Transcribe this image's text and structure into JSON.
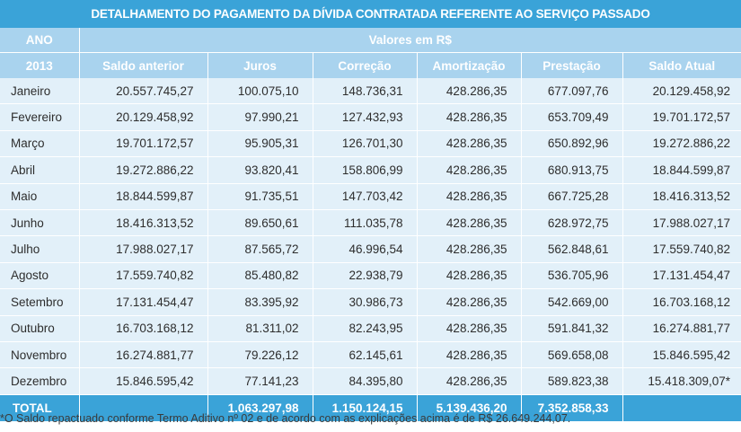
{
  "title": "DETALHAMENTO DO PAGAMENTO DA DÍVIDA CONTRATADA REFERENTE AO SERVIÇO PASSADO",
  "header": {
    "ano_label": "ANO",
    "valores_label": "Valores em R$",
    "year": "2013",
    "columns": [
      "Saldo anterior",
      "Juros",
      "Correção",
      "Amortização",
      "Prestação",
      "Saldo Atual"
    ]
  },
  "rows": [
    {
      "month": "Janeiro",
      "values": [
        "20.557.745,27",
        "100.075,10",
        "148.736,31",
        "428.286,35",
        "677.097,76",
        "20.129.458,92"
      ]
    },
    {
      "month": "Fevereiro",
      "values": [
        "20.129.458,92",
        "97.990,21",
        "127.432,93",
        "428.286,35",
        "653.709,49",
        "19.701.172,57"
      ]
    },
    {
      "month": "Março",
      "values": [
        "19.701.172,57",
        "95.905,31",
        "126.701,30",
        "428.286,35",
        "650.892,96",
        "19.272.886,22"
      ]
    },
    {
      "month": "Abril",
      "values": [
        "19.272.886,22",
        "93.820,41",
        "158.806,99",
        "428.286,35",
        "680.913,75",
        "18.844.599,87"
      ]
    },
    {
      "month": "Maio",
      "values": [
        "18.844.599,87",
        "91.735,51",
        "147.703,42",
        "428.286,35",
        "667.725,28",
        "18.416.313,52"
      ]
    },
    {
      "month": "Junho",
      "values": [
        "18.416.313,52",
        "89.650,61",
        "111.035,78",
        "428.286,35",
        "628.972,75",
        "17.988.027,17"
      ]
    },
    {
      "month": "Julho",
      "values": [
        "17.988.027,17",
        "87.565,72",
        "46.996,54",
        "428.286,35",
        "562.848,61",
        "17.559.740,82"
      ]
    },
    {
      "month": "Agosto",
      "values": [
        "17.559.740,82",
        "85.480,82",
        "22.938,79",
        "428.286,35",
        "536.705,96",
        "17.131.454,47"
      ]
    },
    {
      "month": "Setembro",
      "values": [
        "17.131.454,47",
        "83.395,92",
        "30.986,73",
        "428.286,35",
        "542.669,00",
        "16.703.168,12"
      ]
    },
    {
      "month": "Outubro",
      "values": [
        "16.703.168,12",
        "81.311,02",
        "82.243,95",
        "428.286,35",
        "591.841,32",
        "16.274.881,77"
      ]
    },
    {
      "month": "Novembro",
      "values": [
        "16.274.881,77",
        "79.226,12",
        "62.145,61",
        "428.286,35",
        "569.658,08",
        "15.846.595,42"
      ]
    },
    {
      "month": "Dezembro",
      "values": [
        "15.846.595,42",
        "77.141,23",
        "84.395,80",
        "428.286,35",
        "589.823,38",
        "15.418.309,07*"
      ]
    }
  ],
  "total": {
    "label": "TOTAL",
    "values": [
      "",
      "1.063.297,98",
      "1.150.124,15",
      "5.139.436,20",
      "7.352.858,33",
      ""
    ]
  },
  "footnote": "*O Saldo repactuado conforme Termo Aditivo nº 02 e de acordo com as explicações acima é de R$ 26.649.244,07."
}
